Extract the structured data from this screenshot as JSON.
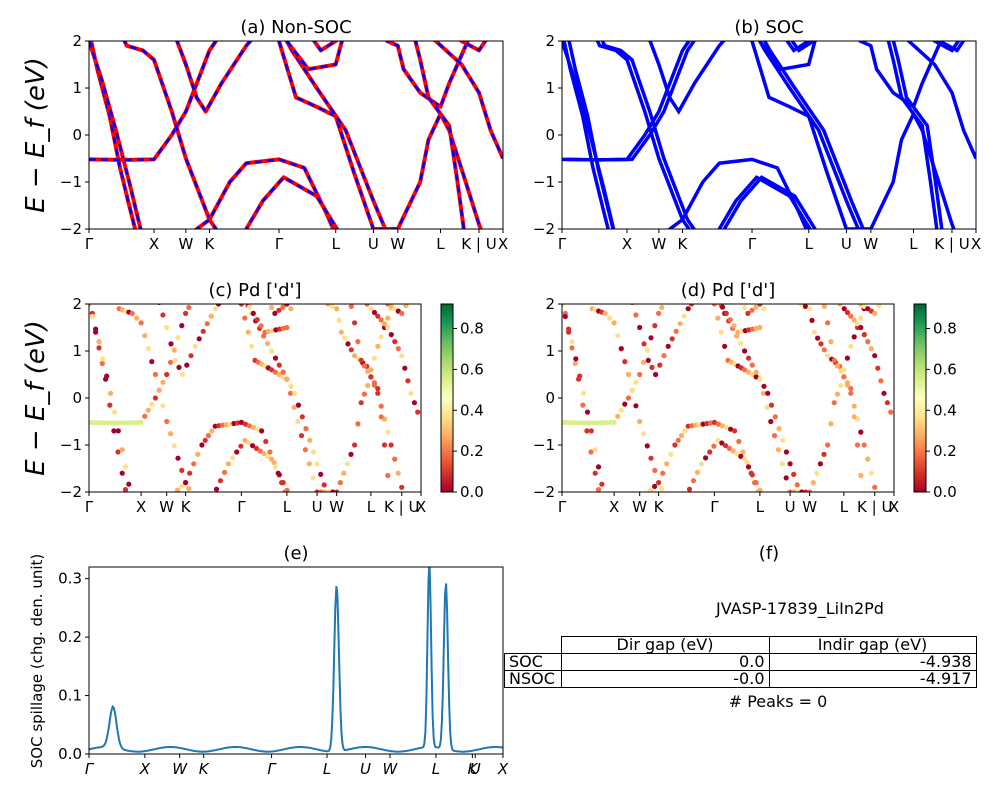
{
  "chart_data": [
    {
      "type": "line",
      "title": "(a) Non-SOC",
      "ylabel": "E − E_f (eV)",
      "ylim": [
        -2,
        2
      ],
      "yticks": [
        "2",
        "1",
        "0",
        "−1",
        "−2"
      ],
      "xticks": [
        "Γ",
        "X",
        "W",
        "K",
        "Γ",
        "L",
        "U",
        "W",
        "L",
        "K | U",
        "X"
      ],
      "series": [
        {
          "color": "#ff0000",
          "style": "solid"
        },
        {
          "color": "#0000ff",
          "style": "dashed"
        }
      ]
    },
    {
      "type": "line",
      "title": "(b) SOC",
      "ylim": [
        -2,
        2
      ],
      "yticks": [
        "2",
        "1",
        "0",
        "−1",
        "−2"
      ],
      "xticks": [
        "Γ",
        "X",
        "W",
        "K",
        "Γ",
        "L",
        "U",
        "W",
        "L",
        "K | U",
        "X"
      ],
      "series": [
        {
          "color": "#0000ff",
          "style": "solid"
        }
      ]
    },
    {
      "type": "scatter",
      "title": "(c)  Pd ['d']",
      "ylabel": "E − E_f (eV)",
      "ylim": [
        -2,
        2
      ],
      "yticks": [
        "2",
        "1",
        "0",
        "−1",
        "−2"
      ],
      "xticks": [
        "Γ",
        "X",
        "W",
        "K",
        "Γ",
        "L",
        "U",
        "W",
        "L",
        "K | U",
        "X"
      ],
      "colorbar": {
        "ticks": [
          "0.8",
          "0.6",
          "0.4",
          "0.2",
          "0.0"
        ],
        "cmap": "RdYlGn"
      }
    },
    {
      "type": "scatter",
      "title": "(d) Pd ['d']",
      "ylim": [
        -2,
        2
      ],
      "yticks": [
        "2",
        "1",
        "0",
        "−1",
        "−2"
      ],
      "xticks": [
        "Γ",
        "X",
        "W",
        "K",
        "Γ",
        "L",
        "U",
        "W",
        "L",
        "K | U",
        "X"
      ],
      "colorbar": {
        "ticks": [
          "0.8",
          "0.6",
          "0.4",
          "0.2",
          "0.0"
        ],
        "cmap": "RdYlGn"
      }
    },
    {
      "type": "line",
      "title": "(e)",
      "ylabel": "SOC spillage (chg. den. unit)",
      "ylim": [
        0,
        0.32
      ],
      "yticks": [
        "0.3",
        "0.2",
        "0.1",
        "0.0"
      ],
      "xticks": [
        "Γ",
        "X",
        "W",
        "K",
        "Γ",
        "L",
        "U",
        "W",
        "L",
        "K",
        "U",
        "X"
      ],
      "series": [
        {
          "color": "#1f77b4",
          "peaks": [
            0.07,
            0.284,
            0.32,
            0.285
          ],
          "baseline": 0.008
        }
      ]
    },
    {
      "type": "table",
      "title": "(f)",
      "subtitle": "JVASP-17839_LiIn2Pd",
      "columns": [
        "Dir gap (eV)",
        "Indir gap (eV)"
      ],
      "rows": [
        {
          "label": "SOC",
          "dir": "0.0",
          "indir": "-4.938"
        },
        {
          "label": "NSOC",
          "dir": "-0.0",
          "indir": "-4.917"
        }
      ],
      "footer": "# Peaks = 0"
    }
  ],
  "colors": {
    "red": "#ff0000",
    "blue": "#0000ff",
    "spillage": "#1f77b4"
  }
}
